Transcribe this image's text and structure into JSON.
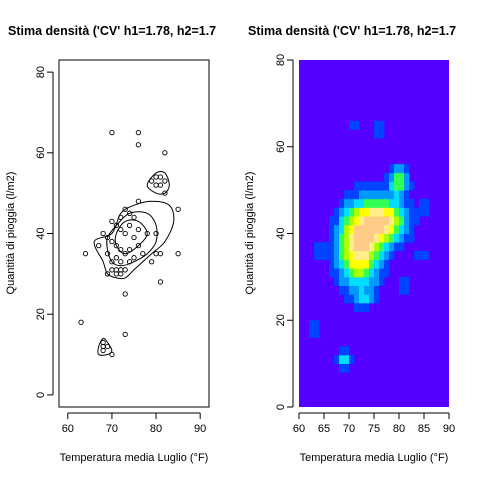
{
  "chart_data": [
    {
      "type": "contour",
      "title": "Stima densità ('CV' h1=1.78, h2=1.7",
      "xlabel": "Temperatura media Luglio (°F)",
      "ylabel": "Quantità di pioggia (l/m2)",
      "xlim": [
        58,
        92
      ],
      "ylim": [
        -3,
        83
      ],
      "xticks": [
        "60",
        "70",
        "80",
        "90"
      ],
      "yticks": [
        "0",
        "20",
        "40",
        "60",
        "80"
      ],
      "points": [
        [
          70,
          65
        ],
        [
          76,
          65
        ],
        [
          76,
          62
        ],
        [
          82,
          60
        ],
        [
          79,
          53
        ],
        [
          80,
          54
        ],
        [
          81,
          54
        ],
        [
          82,
          53
        ],
        [
          80,
          52
        ],
        [
          81,
          52
        ],
        [
          76,
          48
        ],
        [
          82,
          50
        ],
        [
          85,
          46
        ],
        [
          73,
          46
        ],
        [
          74,
          45
        ],
        [
          72,
          44
        ],
        [
          75,
          44
        ],
        [
          70,
          43
        ],
        [
          71,
          42
        ],
        [
          74,
          42
        ],
        [
          72,
          41
        ],
        [
          76,
          41
        ],
        [
          68,
          40
        ],
        [
          69,
          39
        ],
        [
          73,
          40
        ],
        [
          75,
          39
        ],
        [
          78,
          40
        ],
        [
          80,
          40
        ],
        [
          67,
          37
        ],
        [
          70,
          38
        ],
        [
          71,
          37
        ],
        [
          72,
          36
        ],
        [
          74,
          36
        ],
        [
          76,
          37
        ],
        [
          77,
          35
        ],
        [
          69,
          35
        ],
        [
          71,
          34
        ],
        [
          73,
          35
        ],
        [
          75,
          34
        ],
        [
          80,
          35
        ],
        [
          81,
          35
        ],
        [
          85,
          35
        ],
        [
          64,
          35
        ],
        [
          70,
          33
        ],
        [
          72,
          33
        ],
        [
          74,
          33
        ],
        [
          79,
          33
        ],
        [
          70,
          31
        ],
        [
          71,
          31
        ],
        [
          72,
          31
        ],
        [
          73,
          31
        ],
        [
          71,
          30
        ],
        [
          72,
          30
        ],
        [
          69,
          30
        ],
        [
          81,
          28
        ],
        [
          73,
          25
        ],
        [
          63,
          18
        ],
        [
          73,
          15
        ],
        [
          68,
          13
        ],
        [
          68,
          12
        ],
        [
          69,
          12
        ],
        [
          68,
          11
        ],
        [
          70,
          10
        ]
      ],
      "contours": [
        {
          "name": "outer",
          "points": [
            [
              66,
              38
            ],
            [
              70,
              40
            ],
            [
              72,
              45
            ],
            [
              75,
              47
            ],
            [
              79,
              48
            ],
            [
              83,
              47
            ],
            [
              84,
              43
            ],
            [
              82,
              38
            ],
            [
              79,
              35
            ],
            [
              77,
              33
            ],
            [
              75,
              31
            ],
            [
              73,
              29
            ],
            [
              71,
              29
            ],
            [
              69,
              30
            ],
            [
              68,
              33
            ]
          ]
        },
        {
          "name": "middle",
          "points": [
            [
              69,
              39
            ],
            [
              71,
              42
            ],
            [
              74,
              45
            ],
            [
              78,
              45
            ],
            [
              80,
              42
            ],
            [
              80,
              38
            ],
            [
              78,
              35
            ],
            [
              75,
              33
            ],
            [
              72,
              32
            ],
            [
              70,
              33
            ],
            [
              69,
              36
            ]
          ]
        },
        {
          "name": "inner",
          "points": [
            [
              71,
              40
            ],
            [
              73,
              43
            ],
            [
              76,
              43
            ],
            [
              78,
              40
            ],
            [
              76,
              37
            ],
            [
              73,
              35
            ],
            [
              71,
              37
            ]
          ]
        },
        {
          "name": "top",
          "points": [
            [
              78,
              52
            ],
            [
              80,
              55
            ],
            [
              82,
              55
            ],
            [
              83,
              52
            ],
            [
              82,
              50
            ],
            [
              80,
              50
            ]
          ]
        },
        {
          "name": "bottom",
          "points": [
            [
              67,
              12
            ],
            [
              68,
              14
            ],
            [
              69,
              13
            ],
            [
              70,
              11
            ],
            [
              69,
              10
            ],
            [
              67,
              10
            ]
          ]
        }
      ]
    },
    {
      "type": "heatmap",
      "title": "Stima densità ('CV' h1=1.78, h2=1.7",
      "xlabel": "Temperatura media Luglio (°F)",
      "ylabel": "Quantità di pioggia (l/m2)",
      "xlim": [
        60,
        90
      ],
      "ylim": [
        0,
        80
      ],
      "xticks": [
        "60",
        "65",
        "70",
        "75",
        "80",
        "85",
        "90"
      ],
      "yticks": [
        "0",
        "20",
        "40",
        "60",
        "80"
      ],
      "palette": [
        "#5500ff",
        "#0044ff",
        "#0099ff",
        "#00ddff",
        "#33ff55",
        "#aaff00",
        "#ffff00",
        "#ffee88",
        "#ffcc88"
      ],
      "background_color": "#5500ff",
      "blobs": [
        {
          "x": 72,
          "y": 37,
          "sx": 3.0,
          "sy": 6.5,
          "w": 1.0
        },
        {
          "x": 77,
          "y": 43,
          "sx": 3.2,
          "sy": 3.5,
          "w": 0.9
        },
        {
          "x": 80,
          "y": 52,
          "sx": 1.3,
          "sy": 2.2,
          "w": 0.65
        },
        {
          "x": 69,
          "y": 11,
          "sx": 1.1,
          "sy": 1.7,
          "w": 0.45
        },
        {
          "x": 63,
          "y": 18,
          "sx": 0.9,
          "sy": 1.5,
          "w": 0.2
        },
        {
          "x": 71,
          "y": 65,
          "sx": 0.8,
          "sy": 1.0,
          "w": 0.15
        },
        {
          "x": 76,
          "y": 64,
          "sx": 0.8,
          "sy": 1.8,
          "w": 0.2
        },
        {
          "x": 82,
          "y": 60,
          "sx": 0.8,
          "sy": 1.0,
          "w": 0.15
        },
        {
          "x": 64,
          "y": 36,
          "sx": 1.0,
          "sy": 1.0,
          "w": 0.2
        },
        {
          "x": 85,
          "y": 35,
          "sx": 1.1,
          "sy": 1.1,
          "w": 0.25
        },
        {
          "x": 85,
          "y": 46,
          "sx": 1.0,
          "sy": 1.0,
          "w": 0.2
        },
        {
          "x": 81,
          "y": 28,
          "sx": 1.0,
          "sy": 1.0,
          "w": 0.25
        },
        {
          "x": 73,
          "y": 25,
          "sx": 1.2,
          "sy": 1.2,
          "w": 0.25
        },
        {
          "x": 73,
          "y": 15,
          "sx": 0.8,
          "sy": 0.8,
          "w": 0.12
        }
      ]
    }
  ]
}
